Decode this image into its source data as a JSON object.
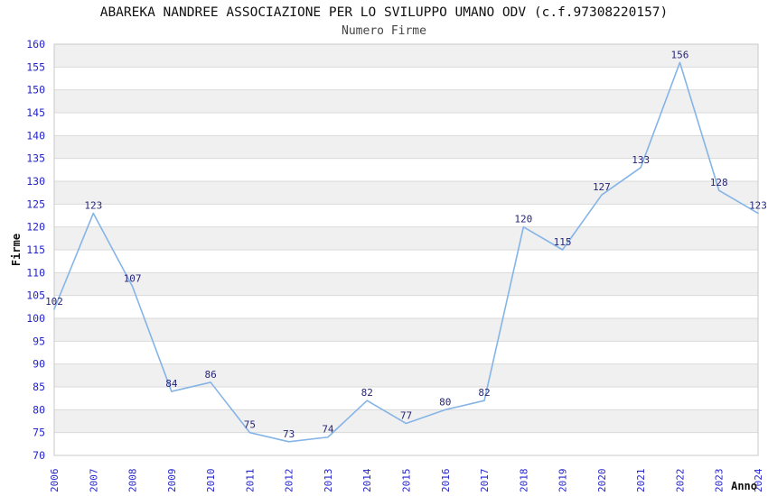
{
  "chart_data": {
    "type": "line",
    "title": "ABAREKA NANDREE ASSOCIAZIONE PER LO SVILUPPO UMANO ODV (c.f.97308220157)",
    "subtitle": "Numero Firme",
    "categories": [
      "2006",
      "2007",
      "2008",
      "2009",
      "2010",
      "2011",
      "2012",
      "2013",
      "2014",
      "2015",
      "2016",
      "2017",
      "2018",
      "2019",
      "2020",
      "2021",
      "2022",
      "2023",
      "2024"
    ],
    "values": [
      102,
      123,
      107,
      84,
      86,
      75,
      73,
      74,
      82,
      77,
      80,
      82,
      120,
      115,
      127,
      133,
      156,
      128,
      123
    ],
    "xlabel": "Anno",
    "ylabel": "Firme",
    "ylim": [
      70,
      160
    ],
    "ytick_step": 5,
    "grid": "horizontal-bands",
    "legend_position": "none",
    "colors": {
      "line": "#85B4E7",
      "tick_label": "#2424CC",
      "point_label": "#262677",
      "band": "#F0F0F0",
      "gridline": "#DADADA",
      "border": "#C8C8C8",
      "title": "#111111",
      "subtitle": "#444444",
      "axis_title": "#111111",
      "background": "#FFFFFF"
    }
  }
}
